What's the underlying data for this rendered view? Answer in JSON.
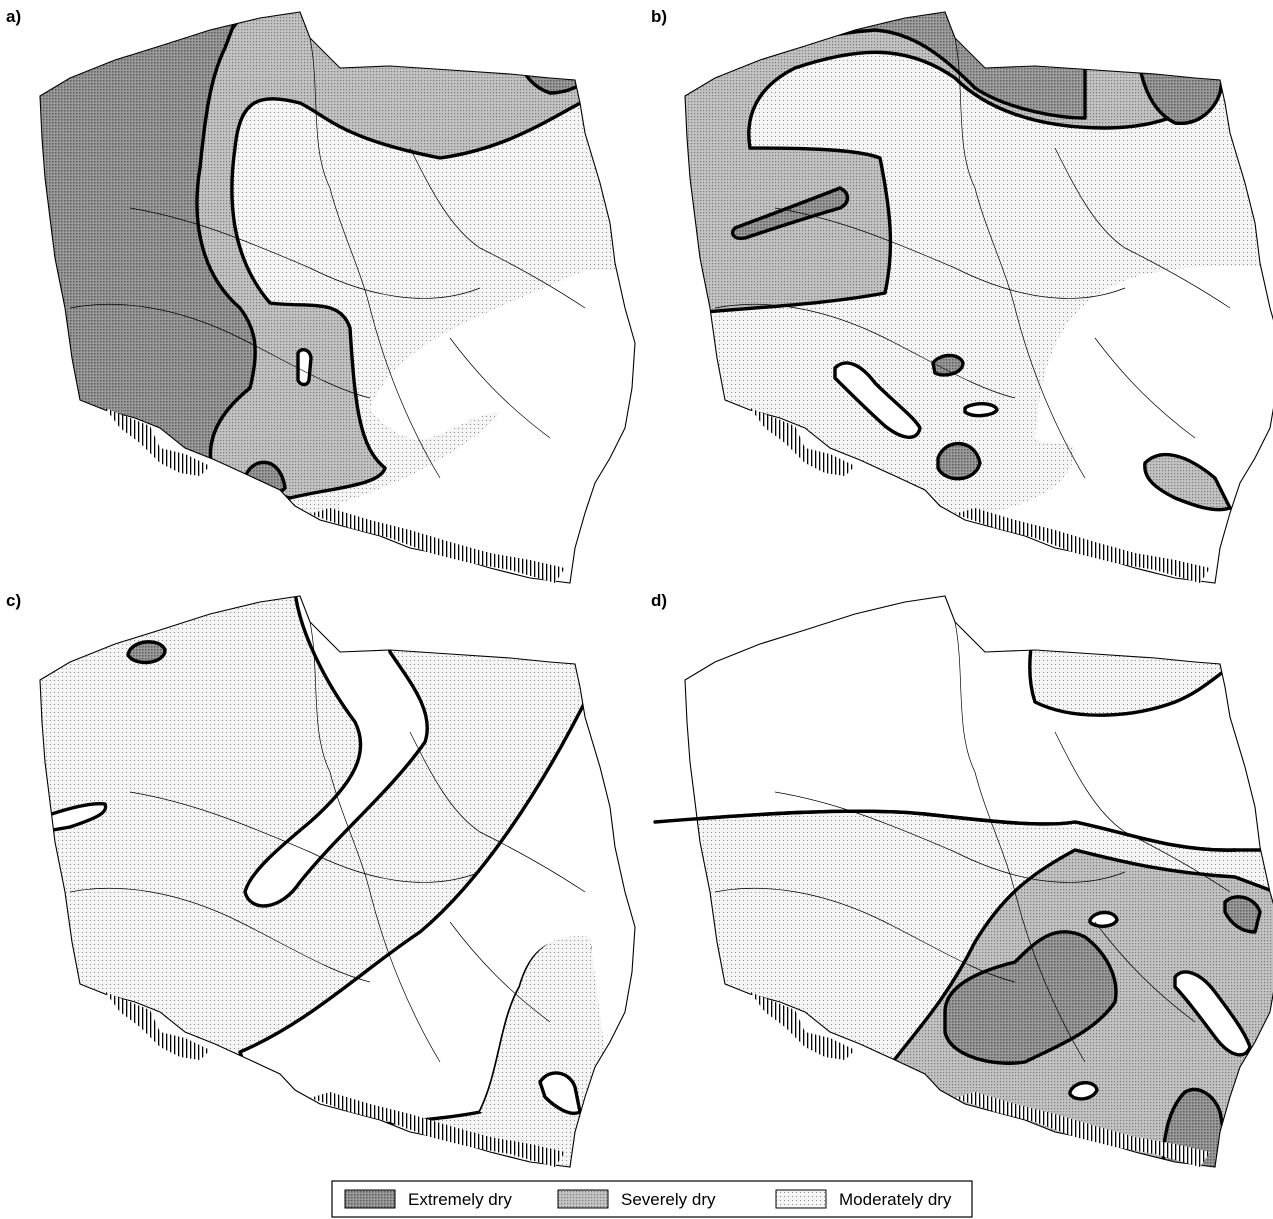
{
  "figure": {
    "panels": [
      {
        "label": "a)"
      },
      {
        "label": "b)"
      },
      {
        "label": "c)"
      },
      {
        "label": "d)"
      }
    ]
  },
  "legend": {
    "items": [
      {
        "label": "Extremely dry",
        "pattern": "dense-dots",
        "color": "#7a7a7a"
      },
      {
        "label": "Severely dry",
        "pattern": "medium-dots",
        "color": "#a8a8a8"
      },
      {
        "label": "Moderately dry",
        "pattern": "sparse-dots",
        "color": "#d8d8d8"
      }
    ]
  },
  "colors": {
    "extremely_dry": "#8f8f8f",
    "severely_dry": "#b5b5b5",
    "moderately_dry": "#e8e8e8",
    "outline": "#000000",
    "background": "#ffffff"
  }
}
